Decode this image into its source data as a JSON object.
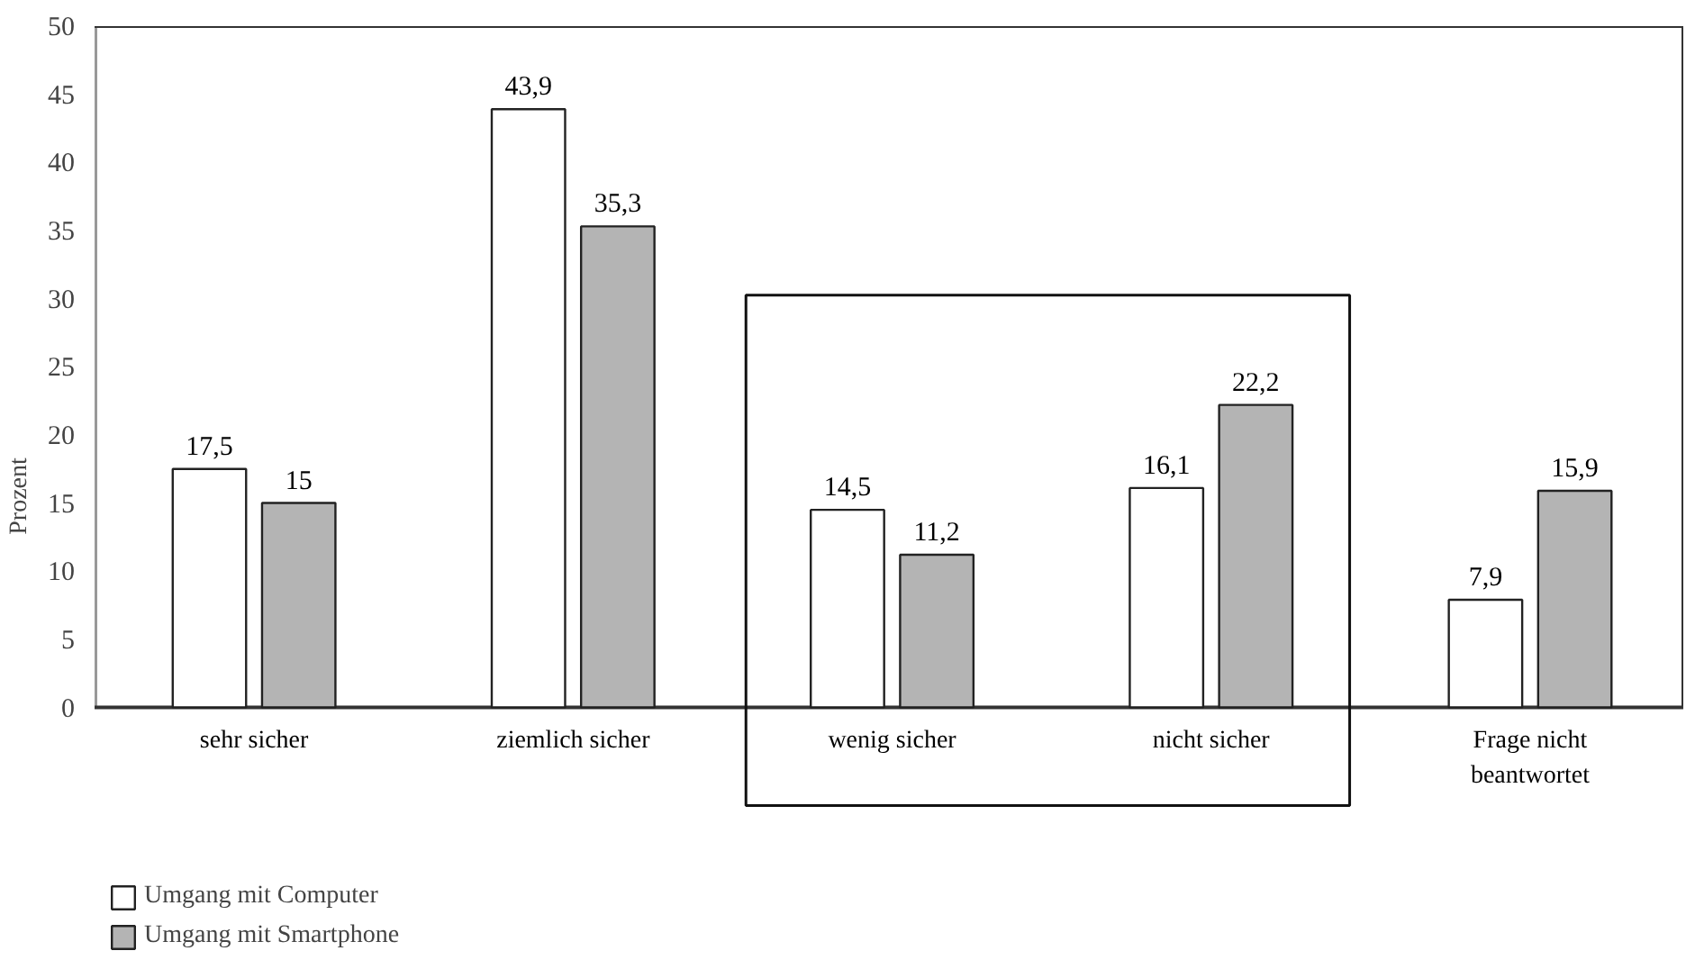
{
  "chart_data": {
    "type": "bar",
    "ylabel": "Prozent",
    "categories": [
      "sehr sicher",
      "ziemlich sicher",
      "wenig sicher",
      "nicht sicher",
      "Frage nicht beantwortet"
    ],
    "series": [
      {
        "name": "Umgang mit Computer",
        "color": "#ffffff",
        "values": [
          17.5,
          43.9,
          14.5,
          16.1,
          7.9
        ],
        "value_labels": [
          "17,5",
          "43,9",
          "14,5",
          "16,1",
          "7,9"
        ]
      },
      {
        "name": "Umgang mit Smartphone",
        "color": "#b4b4b4",
        "values": [
          15,
          35.3,
          11.2,
          22.2,
          15.9
        ],
        "value_labels": [
          "15",
          "35,3",
          "11,2",
          "22,2",
          "15,9"
        ]
      }
    ],
    "ylim": [
      0,
      50
    ],
    "yticks": [
      0,
      5,
      10,
      15,
      20,
      25,
      30,
      35,
      40,
      45,
      50
    ],
    "data_labels": true,
    "grid": false,
    "legend": "bottom left"
  }
}
